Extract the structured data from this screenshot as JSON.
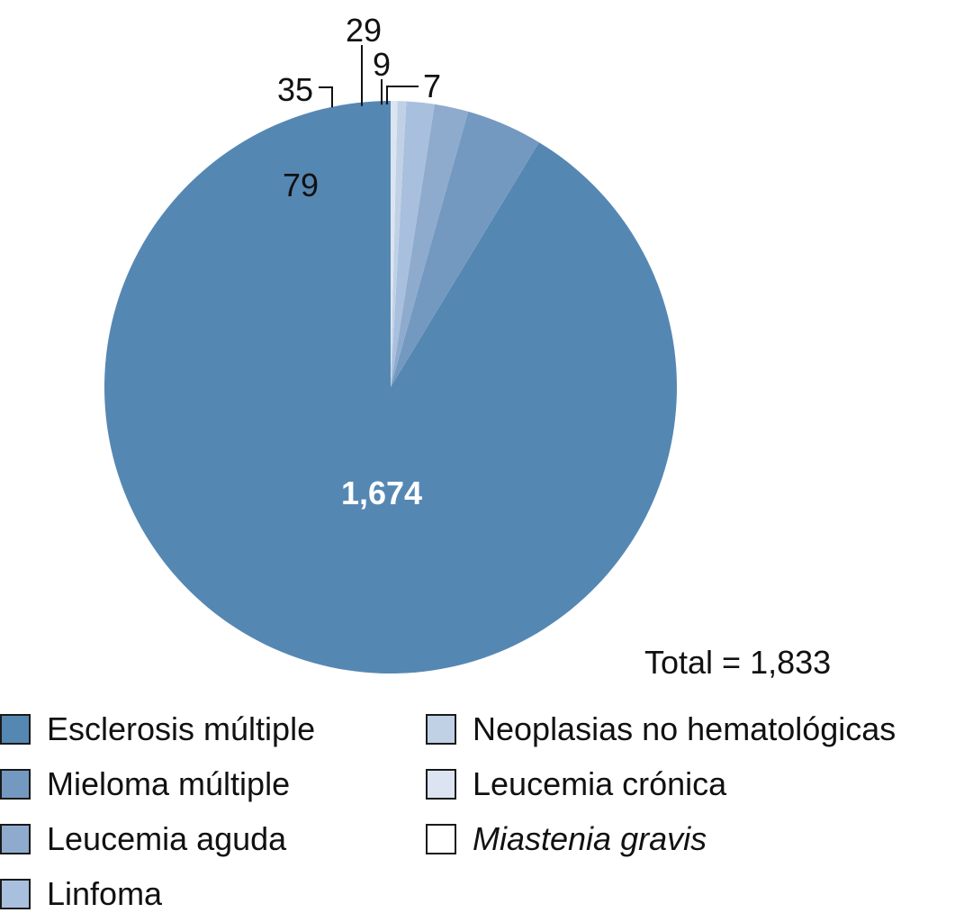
{
  "chart_data": {
    "type": "pie",
    "total_label": "Total = 1,833",
    "slices": [
      {
        "label": "Esclerosis múltiple",
        "value": 1674,
        "display": "1,674",
        "color": "#5587b3",
        "italic": false
      },
      {
        "label": "Mieloma múltiple",
        "value": 79,
        "display": "79",
        "color": "#7399c0",
        "italic": false
      },
      {
        "label": "Leucemia aguda",
        "value": 35,
        "display": "35",
        "color": "#8eabcd",
        "italic": false
      },
      {
        "label": "Linfoma",
        "value": 29,
        "display": "29",
        "color": "#a8c0dd",
        "italic": false
      },
      {
        "label": "Neoplasias no hematológicas",
        "value": 9,
        "display": "9",
        "color": "#c0d1e6",
        "italic": false
      },
      {
        "label": "Leucemia crónica",
        "value": 7,
        "display": "7",
        "color": "#dbe4f0",
        "italic": false
      },
      {
        "label": "Miastenia gravis",
        "value": 0,
        "display": "",
        "color": "#ffffff",
        "italic": true
      }
    ]
  }
}
